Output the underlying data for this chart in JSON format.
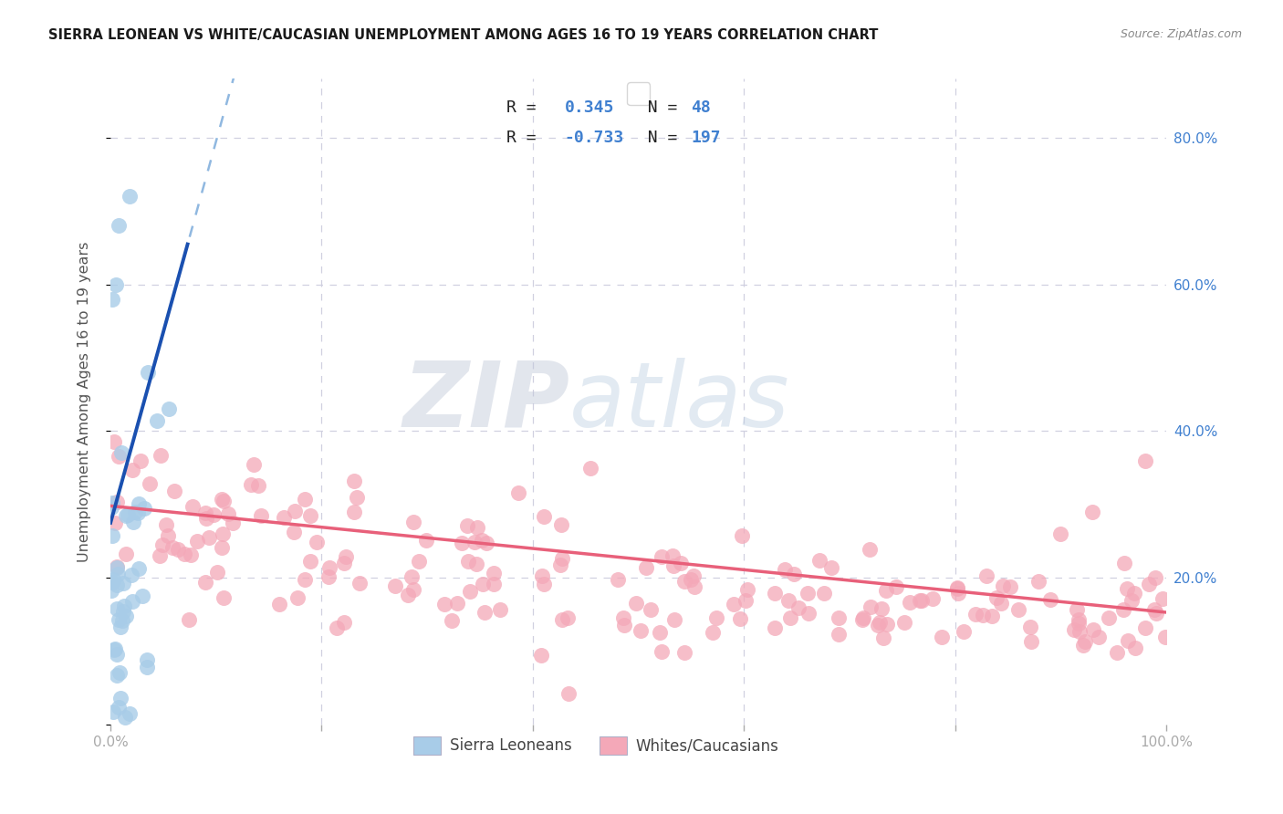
{
  "title": "SIERRA LEONEAN VS WHITE/CAUCASIAN UNEMPLOYMENT AMONG AGES 16 TO 19 YEARS CORRELATION CHART",
  "source": "Source: ZipAtlas.com",
  "ylabel": "Unemployment Among Ages 16 to 19 years",
  "blue_color": "#a8cce8",
  "pink_color": "#f4a8b8",
  "blue_line_color": "#1a50b0",
  "pink_line_color": "#e8607a",
  "blue_dash_color": "#90b8e0",
  "grid_color": "#d0d0e0",
  "background_color": "#ffffff",
  "right_tick_color": "#4080d0",
  "blue_r": 0.345,
  "blue_n": 48,
  "pink_r": -0.733,
  "pink_n": 197,
  "xlim": [
    0.0,
    1.0
  ],
  "ylim": [
    0.0,
    0.88
  ],
  "watermark_zip": "ZIP",
  "watermark_atlas": "atlas",
  "legend_label_blue": "Sierra Leoneans",
  "legend_label_pink": "Whites/Caucasians",
  "seed": 12
}
